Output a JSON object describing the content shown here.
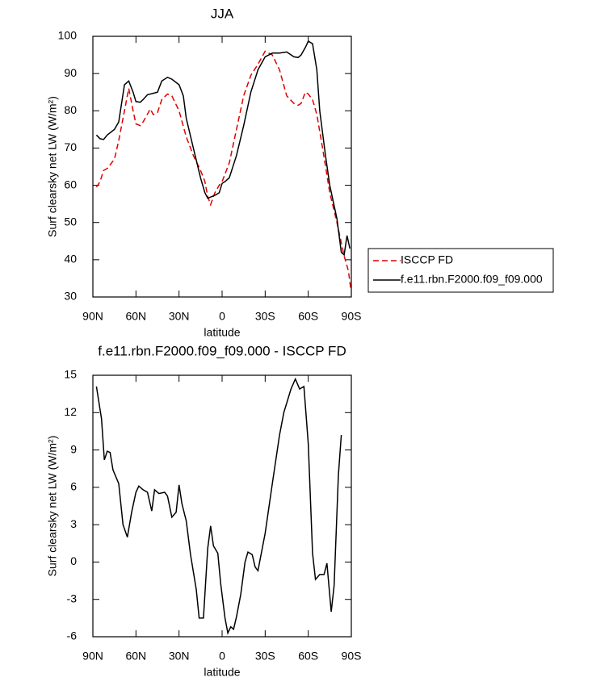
{
  "chart_data": [
    {
      "type": "line",
      "title": "JJA",
      "x_label": "latitude",
      "y_label": "Surf clearsky net LW (W/m²)",
      "xlim": [
        90,
        -90
      ],
      "ylim": [
        30,
        100
      ],
      "xticks": [
        {
          "value": 90,
          "label": "90N"
        },
        {
          "value": 60,
          "label": "60N"
        },
        {
          "value": 30,
          "label": "30N"
        },
        0,
        {
          "value": -30,
          "label": "30S"
        },
        {
          "value": -60,
          "label": "60S"
        },
        {
          "value": -90,
          "label": "90S"
        }
      ],
      "yticks": [
        30,
        40,
        50,
        60,
        70,
        80,
        90,
        100
      ],
      "series": [
        {
          "name": "ISCCP FD",
          "color": "#e00000",
          "dash": true,
          "x": [
            87.5,
            85,
            82.5,
            80,
            75,
            72,
            68,
            65,
            62,
            60,
            57,
            55,
            50,
            48,
            45,
            42,
            38,
            35,
            30,
            25,
            20,
            15,
            12,
            10,
            8,
            5,
            2,
            0,
            -5,
            -10,
            -15,
            -20,
            -25,
            -30,
            -35,
            -40,
            -45,
            -50,
            -53,
            -55,
            -58,
            -60,
            -63,
            -66,
            -70,
            -75,
            -80,
            -85,
            -88,
            -89.5
          ],
          "values": [
            59.5,
            61,
            64,
            64.5,
            67,
            72,
            80,
            86,
            80,
            76.5,
            76,
            77,
            80.5,
            79,
            79.5,
            83,
            84.5,
            84,
            80,
            73,
            68,
            64,
            61,
            57,
            54.8,
            58,
            60,
            61,
            66,
            75,
            84,
            89.5,
            92.5,
            96,
            95,
            91,
            84,
            82,
            81.5,
            82,
            85,
            84.5,
            83,
            79,
            70,
            58,
            50,
            41,
            37,
            32.5
          ]
        },
        {
          "name": "f.e11.rbn.F2000.f09_f09.000",
          "color": "#000000",
          "dash": false,
          "x": [
            87.5,
            85,
            82.5,
            80,
            75,
            72,
            68,
            65,
            62,
            60,
            57,
            55,
            52,
            48,
            45,
            42,
            38,
            35,
            30,
            27,
            25,
            20,
            15,
            12,
            10,
            7,
            4,
            2,
            0,
            -2,
            -5,
            -10,
            -15,
            -20,
            -25,
            -30,
            -35,
            -40,
            -45,
            -50,
            -53,
            -55,
            -58,
            -60,
            -63,
            -66,
            -68,
            -72,
            -75,
            -80,
            -83,
            -85,
            -87,
            -89
          ],
          "values": [
            73.5,
            72.5,
            72.3,
            73.5,
            75,
            77,
            87,
            88,
            85,
            82.5,
            82.3,
            83,
            84.3,
            84.7,
            85,
            88,
            89,
            88.5,
            87,
            84,
            78,
            70,
            62,
            58,
            56.5,
            57,
            57.5,
            58,
            60.5,
            61,
            62,
            68,
            76,
            85,
            91,
            94.5,
            95.5,
            95.5,
            95.8,
            94.5,
            94.3,
            95,
            97,
            98.7,
            98,
            91,
            80,
            68,
            60,
            51,
            42,
            41.3,
            46.5,
            43
          ]
        }
      ]
    },
    {
      "type": "line",
      "title": "f.e11.rbn.F2000.f09_f09.000 - ISCCP FD",
      "x_label": "latitude",
      "y_label": "Surf clearsky net LW (W/m²)",
      "xlim": [
        90,
        -90
      ],
      "ylim": [
        -6,
        15
      ],
      "xticks": [
        {
          "value": 90,
          "label": "90N"
        },
        {
          "value": 60,
          "label": "60N"
        },
        {
          "value": 30,
          "label": "30N"
        },
        0,
        {
          "value": -30,
          "label": "30S"
        },
        {
          "value": -60,
          "label": "60S"
        },
        {
          "value": -90,
          "label": "90S"
        }
      ],
      "yticks": [
        -6,
        -3,
        0,
        3,
        6,
        9,
        12,
        15
      ],
      "series": [
        {
          "color": "#000000",
          "dash": false,
          "x": [
            87.5,
            84,
            82,
            80,
            78,
            76,
            72,
            69,
            66,
            63,
            60,
            58,
            55,
            52,
            49,
            47,
            44,
            40,
            38,
            35,
            32,
            30,
            28,
            25,
            22,
            18,
            16,
            13,
            10,
            8,
            6,
            3,
            1,
            -2,
            -4,
            -6,
            -8,
            -10,
            -13,
            -16,
            -18,
            -21,
            -23,
            -25,
            -30,
            -35,
            -40,
            -43,
            -48,
            -51,
            -54,
            -57,
            -60,
            -63,
            -65,
            -68,
            -71,
            -73,
            -76,
            -78,
            -81,
            -83
          ],
          "values": [
            14.1,
            11.5,
            8.2,
            8.9,
            8.8,
            7.4,
            6.3,
            3,
            2,
            4,
            5.6,
            6.1,
            5.8,
            5.6,
            4.1,
            5.8,
            5.5,
            5.6,
            5.3,
            3.6,
            4,
            6.2,
            4.7,
            3.3,
            0.6,
            -2.2,
            -4.5,
            -4.5,
            1.1,
            2.9,
            1.3,
            0.7,
            -1.7,
            -4.5,
            -5.7,
            -5.2,
            -5.4,
            -4.4,
            -2.6,
            0,
            0.8,
            0.6,
            -0.4,
            -0.7,
            2.3,
            6.3,
            10.2,
            12,
            13.9,
            14.7,
            13.9,
            14.1,
            9.5,
            0.7,
            -1.4,
            -1,
            -1,
            -0.1,
            -4,
            -1.9,
            7,
            10.2
          ]
        }
      ]
    }
  ]
}
